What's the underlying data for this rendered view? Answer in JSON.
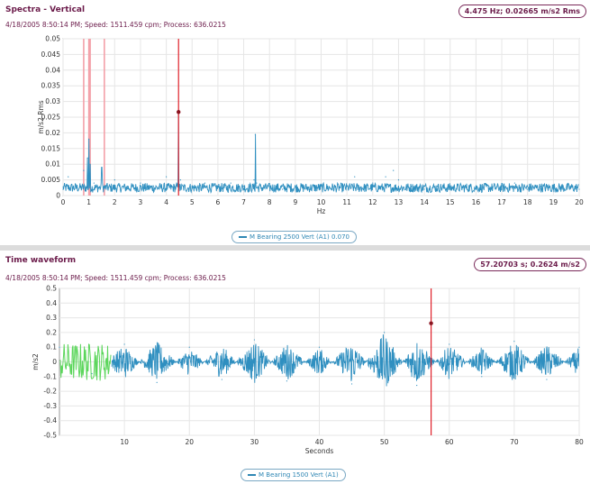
{
  "spectrum": {
    "title": "Spectra - Vertical",
    "subtitle": "4/18/2005 8:50:14 PM; Speed: 1511.459 cpm; Process: 636.0215",
    "readout": "4.475 Hz; 0.02665 m/s2 Rms",
    "legend": "M Bearing 2500 Vert (A1) 0.070"
  },
  "waveform": {
    "title": "Time waveform",
    "subtitle": "4/18/2005 8:50:14 PM; Speed: 1511.459 cpm; Process: 636.0215",
    "readout": "57.20703 s; 0.2624 m/s2",
    "legend": "M Bearing 1500 Vert (A1)"
  },
  "chart_data": [
    {
      "type": "line",
      "title": "Spectra - Vertical",
      "xlabel": "Hz",
      "ylabel": "m/s2 Rms",
      "xlim": [
        0,
        20
      ],
      "ylim": [
        0,
        0.05
      ],
      "x_ticks": [
        "0",
        "1",
        "2",
        "3",
        "4",
        "5",
        "6",
        "7",
        "8",
        "9",
        "10",
        "11",
        "12",
        "13",
        "14",
        "15",
        "16",
        "17",
        "18",
        "19",
        "20"
      ],
      "y_ticks": [
        "0",
        "0.005",
        "0.01",
        "0.015",
        "0.02",
        "0.025",
        "0.03",
        "0.035",
        "0.04",
        "0.045",
        "0.05"
      ],
      "grid": true,
      "series": [
        {
          "name": "M Bearing 2500 Vert (A1) 0.070",
          "color": "#2f8fc0",
          "x": [
            0,
            0.2,
            0.5,
            0.8,
            0.95,
            1.0,
            1.05,
            1.2,
            1.5,
            1.6,
            2.0,
            2.5,
            3.0,
            3.5,
            4.0,
            4.4,
            4.475,
            4.55,
            5.0,
            5.5,
            6.0,
            6.5,
            7.0,
            7.4,
            7.45,
            7.5,
            8.0,
            8.5,
            9.0,
            9.5,
            10.0,
            10.5,
            11.0,
            11.3,
            11.5,
            12.0,
            12.5,
            12.8,
            13.0,
            13.5,
            14.0,
            14.5,
            15.0,
            15.5,
            16.0,
            16.5,
            17.0,
            17.5,
            18.0,
            18.5,
            19.0,
            19.5,
            20.0
          ],
          "y": [
            0.002,
            0.006,
            0.003,
            0.008,
            0.012,
            0.018,
            0.01,
            0.004,
            0.009,
            0.003,
            0.005,
            0.003,
            0.004,
            0.003,
            0.006,
            0.004,
            0.02665,
            0.005,
            0.003,
            0.004,
            0.003,
            0.004,
            0.003,
            0.005,
            0.0195,
            0.004,
            0.003,
            0.002,
            0.003,
            0.002,
            0.003,
            0.002,
            0.003,
            0.006,
            0.002,
            0.004,
            0.006,
            0.008,
            0.005,
            0.003,
            0.002,
            0.003,
            0.002,
            0.003,
            0.002,
            0.003,
            0.002,
            0.004,
            0.002,
            0.003,
            0.002,
            0.002,
            0.002
          ]
        }
      ],
      "cursor": {
        "x": 4.475,
        "y": 0.02665,
        "color": "#e0202a"
      },
      "markers": [
        {
          "x": 0.8
        },
        {
          "x": 1.0
        },
        {
          "x": 1.05
        },
        {
          "x": 1.6
        }
      ],
      "marker_color": "#f3a0a8"
    },
    {
      "type": "line",
      "title": "Time waveform",
      "xlabel": "Seconds",
      "ylabel": "m/s2",
      "xlim": [
        0,
        80
      ],
      "ylim": [
        -0.5,
        0.5
      ],
      "x_ticks": [
        "10",
        "20",
        "30",
        "40",
        "50",
        "60",
        "70",
        "80"
      ],
      "y_ticks": [
        "-0.5",
        "-0.4",
        "-0.3",
        "-0.2",
        "-0.1",
        "0",
        "0.1",
        "0.2",
        "0.3",
        "0.4",
        "0.5"
      ],
      "grid": true,
      "series": [
        {
          "name": "M Bearing 1500 Vert (A1)",
          "color": "#2f8fc0",
          "x": [
            0,
            5,
            10,
            15,
            20,
            25,
            30,
            35,
            40,
            45,
            50,
            55,
            60,
            65,
            70,
            75,
            80
          ],
          "y": [
            0.1,
            -0.08,
            0.12,
            -0.14,
            0.1,
            -0.12,
            0.15,
            -0.13,
            0.1,
            -0.15,
            0.2,
            -0.16,
            0.12,
            -0.1,
            0.14,
            -0.12,
            0.1
          ]
        }
      ],
      "highlight": {
        "x_range": [
          0,
          8
        ],
        "y_range": [
          -0.13,
          0.13
        ],
        "color": "#5cd65c"
      },
      "cursor": {
        "x": 57.20703,
        "y": 0.2624,
        "color": "#e0202a"
      }
    }
  ]
}
